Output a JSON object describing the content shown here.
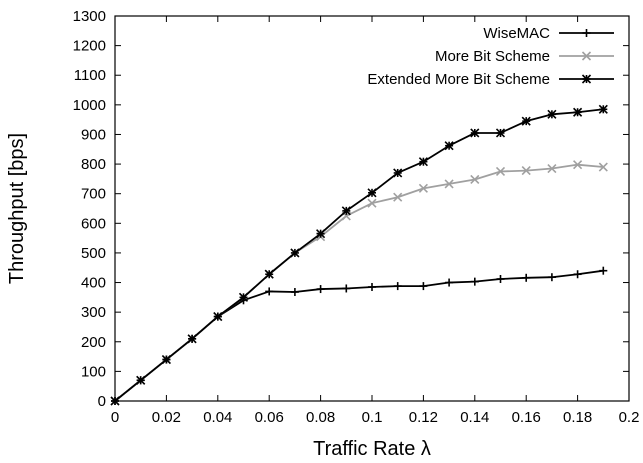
{
  "chart_data": {
    "type": "line",
    "xlabel": "Traffic Rate λ",
    "ylabel": "Throughput [bps]",
    "xlim": [
      0,
      0.2
    ],
    "ylim": [
      0,
      1300
    ],
    "xticks": [
      "0",
      "0.02",
      "0.04",
      "0.06",
      "0.08",
      "0.1",
      "0.12",
      "0.14",
      "0.16",
      "0.18",
      "0.2"
    ],
    "xtick_values": [
      0,
      0.02,
      0.04,
      0.06,
      0.08,
      0.1,
      0.12,
      0.14,
      0.16,
      0.18,
      0.2
    ],
    "yticks": [
      "0",
      "100",
      "200",
      "300",
      "400",
      "500",
      "600",
      "700",
      "800",
      "900",
      "1000",
      "1100",
      "1200",
      "1300"
    ],
    "ytick_values": [
      0,
      100,
      200,
      300,
      400,
      500,
      600,
      700,
      800,
      900,
      1000,
      1100,
      1200,
      1300
    ],
    "grid": false,
    "legend_position": "top-right",
    "x": [
      0,
      0.01,
      0.02,
      0.03,
      0.04,
      0.05,
      0.06,
      0.07,
      0.08,
      0.09,
      0.1,
      0.11,
      0.12,
      0.13,
      0.14,
      0.15,
      0.16,
      0.17,
      0.18,
      0.19
    ],
    "series": [
      {
        "name": "WiseMAC",
        "color": "#000000",
        "marker": "plus",
        "values": [
          0,
          70,
          140,
          210,
          285,
          340,
          370,
          368,
          378,
          380,
          385,
          388,
          388,
          400,
          403,
          412,
          416,
          418,
          428,
          440
        ]
      },
      {
        "name": "More Bit Scheme",
        "color": "#a0a0a0",
        "marker": "cross",
        "values": [
          0,
          70,
          140,
          210,
          285,
          350,
          428,
          500,
          555,
          625,
          668,
          688,
          718,
          733,
          748,
          775,
          778,
          785,
          798,
          790
        ]
      },
      {
        "name": "Extended More Bit Scheme",
        "color": "#000000",
        "marker": "star",
        "values": [
          0,
          70,
          140,
          210,
          285,
          350,
          428,
          500,
          565,
          642,
          703,
          770,
          808,
          862,
          905,
          905,
          945,
          968,
          975,
          985
        ]
      }
    ]
  }
}
